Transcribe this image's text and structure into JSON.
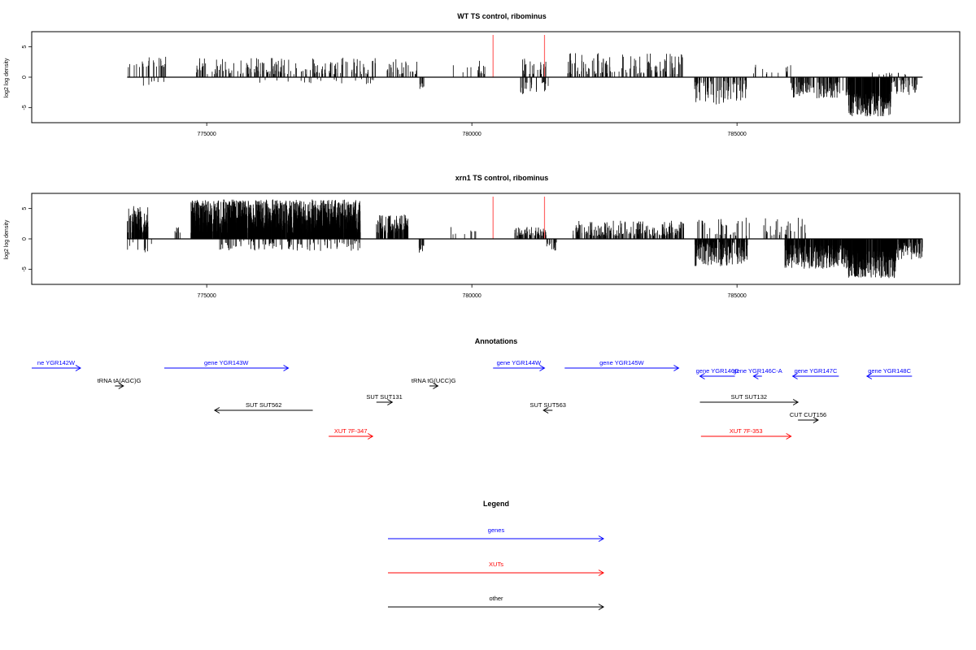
{
  "chart_data": [
    {
      "type": "bar",
      "title": "WT TS control, ribominus",
      "ylabel": "log2 log density",
      "xlim": [
        771700,
        789200
      ],
      "ylim": [
        -7.5,
        7.5
      ],
      "xticks": [
        775000,
        780000,
        785000
      ],
      "yticks": [
        -5,
        0,
        5
      ],
      "data_range": [
        773500,
        788500
      ],
      "marker_lines": [
        {
          "x": 780400,
          "color": "#ff6666"
        },
        {
          "x": 781370,
          "color": "#ff6666"
        }
      ],
      "segments": [
        {
          "x0": 773500,
          "x1": 774300,
          "y0": 1.5,
          "y1": 3.5,
          "density": 0.008,
          "neg": false
        },
        {
          "x0": 773800,
          "x1": 774200,
          "y0": -1.8,
          "y1": -0.6,
          "density": 0.004,
          "neg": true
        },
        {
          "x0": 774800,
          "x1": 778200,
          "y0": 0.5,
          "y1": 3.2,
          "density": 0.013,
          "neg": false
        },
        {
          "x0": 775600,
          "x1": 778200,
          "y0": -1.2,
          "y1": -0.3,
          "density": 0.002,
          "neg": true
        },
        {
          "x0": 778400,
          "x1": 779000,
          "y0": 0.5,
          "y1": 3.0,
          "density": 0.012,
          "neg": false
        },
        {
          "x0": 779000,
          "x1": 779100,
          "y0": -2.0,
          "y1": -1.0,
          "density": 0.02,
          "neg": true
        },
        {
          "x0": 779600,
          "x1": 780300,
          "y0": 0.5,
          "y1": 3.0,
          "density": 0.005,
          "neg": false
        },
        {
          "x0": 780800,
          "x1": 781400,
          "y0": 0.5,
          "y1": 3.2,
          "density": 0.012,
          "neg": false
        },
        {
          "x0": 780900,
          "x1": 781500,
          "y0": -3.0,
          "y1": -0.8,
          "density": 0.01,
          "neg": true
        },
        {
          "x0": 781800,
          "x1": 784000,
          "y0": 0.5,
          "y1": 4.0,
          "density": 0.014,
          "neg": false
        },
        {
          "x0": 784200,
          "x1": 785200,
          "y0": -4.5,
          "y1": -0.5,
          "density": 0.02,
          "neg": true
        },
        {
          "x0": 785300,
          "x1": 786100,
          "y0": 0.5,
          "y1": 2.2,
          "density": 0.004,
          "neg": false
        },
        {
          "x0": 786000,
          "x1": 787300,
          "y0": -3.5,
          "y1": -0.8,
          "density": 0.025,
          "neg": true
        },
        {
          "x0": 787100,
          "x1": 787900,
          "y0": -6.5,
          "y1": -2.5,
          "density": 0.07,
          "neg": true
        },
        {
          "x0": 787900,
          "x1": 788400,
          "y0": -3.0,
          "y1": -0.5,
          "density": 0.02,
          "neg": true
        },
        {
          "x0": 787400,
          "x1": 788300,
          "y0": 0.3,
          "y1": 1.0,
          "density": 0.003,
          "neg": false
        }
      ]
    },
    {
      "type": "bar",
      "title": "xrn1 TS control, ribominus",
      "ylabel": "log2 log density",
      "xlim": [
        771700,
        789200
      ],
      "ylim": [
        -7.5,
        7.5
      ],
      "xticks": [
        775000,
        780000,
        785000
      ],
      "yticks": [
        -5,
        0,
        5
      ],
      "data_range": [
        773500,
        788500
      ],
      "marker_lines": [
        {
          "x": 780400,
          "color": "#ff6666"
        },
        {
          "x": 781370,
          "color": "#ff6666"
        }
      ],
      "segments": [
        {
          "x0": 773500,
          "x1": 773900,
          "y0": 1.0,
          "y1": 5.5,
          "density": 0.06,
          "neg": false
        },
        {
          "x0": 773500,
          "x1": 774000,
          "y0": -2.5,
          "y1": -0.5,
          "density": 0.005,
          "neg": true
        },
        {
          "x0": 774400,
          "x1": 774500,
          "y0": 1.0,
          "y1": 2.0,
          "density": 0.02,
          "neg": false
        },
        {
          "x0": 774700,
          "x1": 777900,
          "y0": 1.0,
          "y1": 6.5,
          "density": 0.12,
          "neg": false
        },
        {
          "x0": 775200,
          "x1": 777900,
          "y0": -2.0,
          "y1": -0.3,
          "density": 0.01,
          "neg": true
        },
        {
          "x0": 778200,
          "x1": 778800,
          "y0": 1.0,
          "y1": 4.0,
          "density": 0.05,
          "neg": false
        },
        {
          "x0": 779000,
          "x1": 779100,
          "y0": -2.5,
          "y1": -1.0,
          "density": 0.03,
          "neg": true
        },
        {
          "x0": 779600,
          "x1": 780100,
          "y0": 0.5,
          "y1": 2.5,
          "density": 0.004,
          "neg": false
        },
        {
          "x0": 780800,
          "x1": 781400,
          "y0": 0.5,
          "y1": 2.0,
          "density": 0.03,
          "neg": false
        },
        {
          "x0": 781400,
          "x1": 781600,
          "y0": -2.0,
          "y1": -0.5,
          "density": 0.02,
          "neg": true
        },
        {
          "x0": 781900,
          "x1": 784000,
          "y0": 0.5,
          "y1": 3.0,
          "density": 0.025,
          "neg": false
        },
        {
          "x0": 784200,
          "x1": 785200,
          "y0": -4.5,
          "y1": -0.5,
          "density": 0.05,
          "neg": true
        },
        {
          "x0": 784200,
          "x1": 785300,
          "y0": 0.5,
          "y1": 3.5,
          "density": 0.008,
          "neg": false
        },
        {
          "x0": 785500,
          "x1": 786300,
          "y0": 0.5,
          "y1": 3.5,
          "density": 0.01,
          "neg": false
        },
        {
          "x0": 785900,
          "x1": 787200,
          "y0": -5.0,
          "y1": -1.0,
          "density": 0.07,
          "neg": true
        },
        {
          "x0": 787100,
          "x1": 788000,
          "y0": -6.5,
          "y1": -2.0,
          "density": 0.09,
          "neg": true
        },
        {
          "x0": 787900,
          "x1": 788500,
          "y0": -3.5,
          "y1": -0.5,
          "density": 0.04,
          "neg": true
        }
      ]
    }
  ],
  "annotations": {
    "title": "Annotations",
    "features": [
      {
        "label": "ne YGR142W",
        "start": 771700,
        "end": 772620,
        "dir": "right",
        "color": "#0000ff",
        "row": 0
      },
      {
        "label": "gene YGR143W",
        "start": 774200,
        "end": 776540,
        "dir": "right",
        "color": "#0000ff",
        "row": 0
      },
      {
        "label": "gene YGR144W",
        "start": 780400,
        "end": 781370,
        "dir": "right",
        "color": "#0000ff",
        "row": 0
      },
      {
        "label": "gene YGR145W",
        "start": 781750,
        "end": 783900,
        "dir": "right",
        "color": "#0000ff",
        "row": 0
      },
      {
        "label": "gene YGR146C",
        "start": 784300,
        "end": 784960,
        "dir": "left",
        "color": "#0000ff",
        "row": 1
      },
      {
        "label": "gene YGR146C-A",
        "start": 785310,
        "end": 785470,
        "dir": "left",
        "color": "#0000ff",
        "row": 1
      },
      {
        "label": "gene YGR147C",
        "start": 786050,
        "end": 786920,
        "dir": "left",
        "color": "#0000ff",
        "row": 1
      },
      {
        "label": "gene YGR148C",
        "start": 787450,
        "end": 788300,
        "dir": "left",
        "color": "#0000ff",
        "row": 1
      },
      {
        "label": "tRNA tA(AGC)G",
        "start": 773270,
        "end": 773430,
        "dir": "right",
        "color": "#000000",
        "row": 2
      },
      {
        "label": "tRNA tG(UCC)G",
        "start": 779200,
        "end": 779360,
        "dir": "right",
        "color": "#000000",
        "row": 2
      },
      {
        "label": "SUT SUT131",
        "start": 778200,
        "end": 778500,
        "dir": "right",
        "color": "#000000",
        "row": 3
      },
      {
        "label": "SUT SUT132",
        "start": 784300,
        "end": 786150,
        "dir": "right",
        "color": "#000000",
        "row": 3
      },
      {
        "label": "SUT SUT562",
        "start": 775150,
        "end": 777000,
        "dir": "left",
        "color": "#000000",
        "row": 4
      },
      {
        "label": "SUT SUT563",
        "start": 781350,
        "end": 781520,
        "dir": "left",
        "color": "#000000",
        "row": 4
      },
      {
        "label": "CUT CUT156",
        "start": 786150,
        "end": 786530,
        "dir": "right",
        "color": "#000000",
        "row": 5
      },
      {
        "label": "XUT 7F-347",
        "start": 777300,
        "end": 778130,
        "dir": "right",
        "color": "#ff0000",
        "row": 6
      },
      {
        "label": "XUT 7F-353",
        "start": 784320,
        "end": 786020,
        "dir": "right",
        "color": "#ff0000",
        "row": 6
      }
    ]
  },
  "legend": {
    "title": "Legend",
    "items": [
      {
        "label": "genes",
        "color": "#0000ff"
      },
      {
        "label": "XUTs",
        "color": "#ff0000"
      },
      {
        "label": "other",
        "color": "#000000"
      }
    ]
  }
}
